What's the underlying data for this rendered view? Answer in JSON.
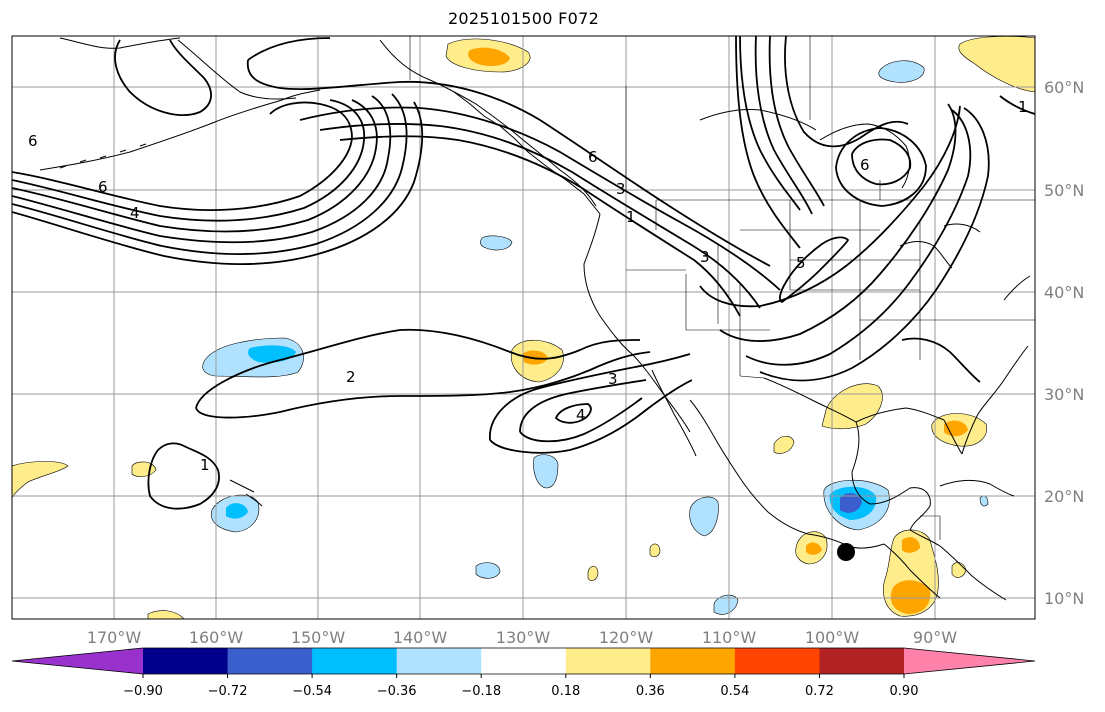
{
  "title": "2025101500 F072",
  "map": {
    "lon_labels": [
      "170°W",
      "160°W",
      "150°W",
      "140°W",
      "130°W",
      "120°W",
      "110°W",
      "100°W",
      "90°W"
    ],
    "lat_labels": [
      "60°N",
      "50°N",
      "40°N",
      "30°N",
      "20°N",
      "10°N"
    ],
    "contour_labels": [
      "6",
      "4",
      "6",
      "3",
      "1",
      "3",
      "5",
      "6",
      "2",
      "3",
      "4",
      "1",
      "1",
      "6"
    ],
    "marker": "typhoon-center-dot"
  },
  "colorbar": {
    "ticks": [
      "−0.90",
      "−0.72",
      "−0.54",
      "−0.36",
      "−0.18",
      "0.18",
      "0.36",
      "0.54",
      "0.72",
      "0.90"
    ],
    "colors": [
      "#9932cc",
      "#9932cc",
      "#00008b",
      "#3a5fcd",
      "#00bfff",
      "#b0e2ff",
      "#ffffff",
      "#ffec8b",
      "#ffa500",
      "#ff4500",
      "#b22222",
      "#ff82ab",
      "#ff82ab"
    ]
  },
  "palette": {
    "neg_light": "#b0e2ff",
    "neg_mid": "#00bfff",
    "neg_dark": "#3a5fcd",
    "pos_light": "#ffec8b",
    "pos_mid": "#ffa500",
    "grid": "#999999",
    "coast": "#000000"
  }
}
